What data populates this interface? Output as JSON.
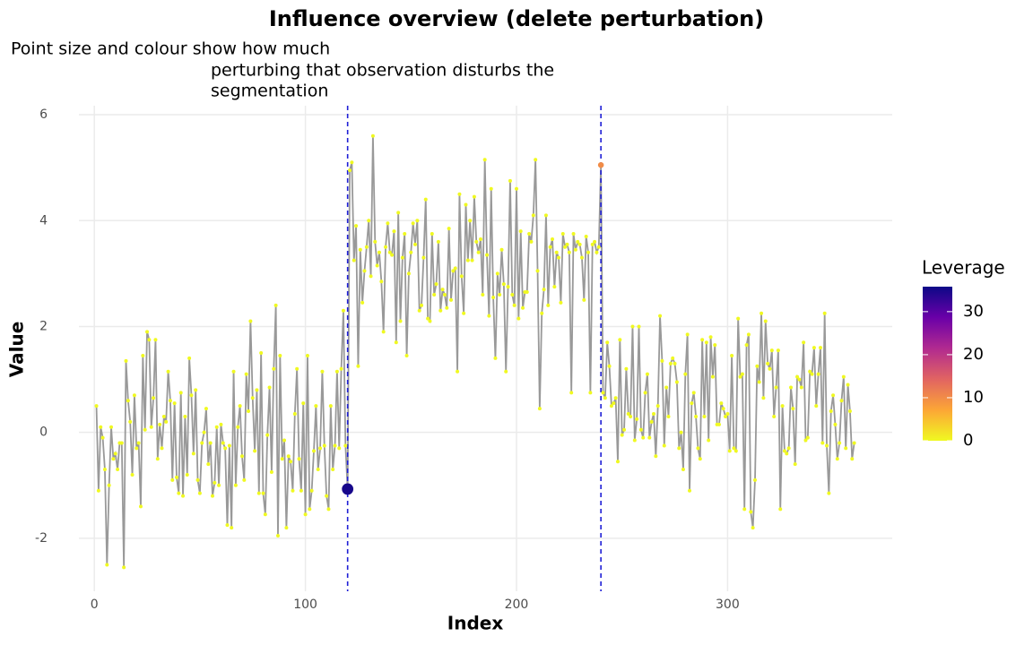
{
  "chart_data": {
    "type": "line",
    "title": "Influence overview (delete perturbation)",
    "subtitle": [
      "Point size and colour show how much",
      "perturbing that observation disturbs the",
      "segmentation"
    ],
    "xlabel": "Index",
    "ylabel": "Value",
    "x": [
      1,
      2,
      3,
      4,
      5,
      6,
      7,
      8,
      9,
      10,
      11,
      12,
      13,
      14,
      15,
      16,
      17,
      18,
      19,
      20,
      21,
      22,
      23,
      24,
      25,
      26,
      27,
      28,
      29,
      30,
      31,
      32,
      33,
      34,
      35,
      36,
      37,
      38,
      39,
      40,
      41,
      42,
      43,
      44,
      45,
      46,
      47,
      48,
      49,
      50,
      51,
      52,
      53,
      54,
      55,
      56,
      57,
      58,
      59,
      60,
      61,
      62,
      63,
      64,
      65,
      66,
      67,
      68,
      69,
      70,
      71,
      72,
      73,
      74,
      75,
      76,
      77,
      78,
      79,
      80,
      81,
      82,
      83,
      84,
      85,
      86,
      87,
      88,
      89,
      90,
      91,
      92,
      93,
      94,
      95,
      96,
      97,
      98,
      99,
      100,
      101,
      102,
      103,
      104,
      105,
      106,
      107,
      108,
      109,
      110,
      111,
      112,
      113,
      114,
      115,
      116,
      117,
      118,
      119,
      120,
      121,
      122,
      123,
      124,
      125,
      126,
      127,
      128,
      129,
      130,
      131,
      132,
      133,
      134,
      135,
      136,
      137,
      138,
      139,
      140,
      141,
      142,
      143,
      144,
      145,
      146,
      147,
      148,
      149,
      150,
      151,
      152,
      153,
      154,
      155,
      156,
      157,
      158,
      159,
      160,
      161,
      162,
      163,
      164,
      165,
      166,
      167,
      168,
      169,
      170,
      171,
      172,
      173,
      174,
      175,
      176,
      177,
      178,
      179,
      180,
      181,
      182,
      183,
      184,
      185,
      186,
      187,
      188,
      189,
      190,
      191,
      192,
      193,
      194,
      195,
      196,
      197,
      198,
      199,
      200,
      201,
      202,
      203,
      204,
      205,
      206,
      207,
      208,
      209,
      210,
      211,
      212,
      213,
      214,
      215,
      216,
      217,
      218,
      219,
      220,
      221,
      222,
      223,
      224,
      225,
      226,
      227,
      228,
      229,
      230,
      231,
      232,
      233,
      234,
      235,
      236,
      237,
      238,
      239,
      240,
      241,
      242,
      243,
      244,
      245,
      246,
      247,
      248,
      249,
      250,
      251,
      252,
      253,
      254,
      255,
      256,
      257,
      258,
      259,
      260,
      261,
      262,
      263,
      264,
      265,
      266,
      267,
      268,
      269,
      270,
      271,
      272,
      273,
      274,
      275,
      276,
      277,
      278,
      279,
      280,
      281,
      282,
      283,
      284,
      285,
      286,
      287,
      288,
      289,
      290,
      291,
      292,
      293,
      294,
      295,
      296,
      297,
      298,
      299,
      300,
      301,
      302,
      303,
      304,
      305,
      306,
      307,
      308,
      309,
      310,
      311,
      312,
      313,
      314,
      315,
      316,
      317,
      318,
      319,
      320,
      321,
      322,
      323,
      324,
      325,
      326,
      327,
      328,
      329,
      330,
      331,
      332,
      333,
      334,
      335,
      336,
      337,
      338,
      339,
      340,
      341,
      342,
      343,
      344,
      345,
      346,
      347,
      348,
      349,
      350,
      351,
      352,
      353,
      354,
      355,
      356,
      357,
      358,
      359,
      360
    ],
    "values": [
      0.5,
      -1.1,
      0.1,
      -0.1,
      -0.7,
      -2.5,
      -1.0,
      0.1,
      -0.5,
      -0.4,
      -0.7,
      -0.2,
      -0.2,
      -2.55,
      1.35,
      0.6,
      0.2,
      -0.8,
      0.7,
      -0.3,
      -0.2,
      -1.4,
      1.45,
      0.05,
      1.9,
      1.75,
      0.1,
      0.65,
      1.75,
      -0.5,
      0.15,
      -0.3,
      0.3,
      0.2,
      1.15,
      0.6,
      -0.9,
      0.55,
      -0.85,
      -1.15,
      0.75,
      -1.2,
      0.3,
      -0.8,
      1.4,
      0.7,
      -0.4,
      0.8,
      -0.9,
      -1.15,
      -0.2,
      0.0,
      0.45,
      -0.6,
      -0.2,
      -1.2,
      -0.95,
      0.1,
      -1.0,
      0.15,
      -0.2,
      -0.3,
      -1.75,
      -0.25,
      -1.8,
      1.15,
      -1.0,
      0.1,
      0.5,
      -0.45,
      -0.9,
      1.1,
      0.4,
      2.1,
      0.65,
      -0.35,
      0.8,
      -1.15,
      1.5,
      -1.15,
      -1.55,
      -0.05,
      0.85,
      -0.75,
      1.2,
      2.4,
      -1.95,
      1.45,
      -0.5,
      -0.15,
      -1.8,
      -0.45,
      -0.55,
      -1.1,
      0.35,
      1.2,
      -0.5,
      -1.1,
      0.55,
      -1.55,
      1.45,
      -1.45,
      -1.1,
      -0.35,
      0.5,
      -0.7,
      -0.3,
      1.15,
      -0.25,
      -1.2,
      -1.45,
      0.5,
      -0.7,
      -0.25,
      1.15,
      -0.3,
      1.2,
      2.3,
      -0.25,
      -1.07,
      4.95,
      5.1,
      3.25,
      3.9,
      1.25,
      3.45,
      2.45,
      3.05,
      3.5,
      4.0,
      2.95,
      5.6,
      3.6,
      3.15,
      3.4,
      2.85,
      1.9,
      3.5,
      3.95,
      3.4,
      3.35,
      3.8,
      1.7,
      4.15,
      2.1,
      3.3,
      3.75,
      1.45,
      3.0,
      3.4,
      3.95,
      3.55,
      4.0,
      2.3,
      2.4,
      3.3,
      4.4,
      2.15,
      2.1,
      3.75,
      2.6,
      2.8,
      3.6,
      2.3,
      2.7,
      2.6,
      2.35,
      3.85,
      2.5,
      3.05,
      3.1,
      1.15,
      4.5,
      2.95,
      2.25,
      4.3,
      3.25,
      4.0,
      3.25,
      4.45,
      3.6,
      3.4,
      3.65,
      2.6,
      5.15,
      3.35,
      2.2,
      4.6,
      2.55,
      1.4,
      3.0,
      2.6,
      3.45,
      2.8,
      1.15,
      2.75,
      4.75,
      2.6,
      2.4,
      4.6,
      2.15,
      3.8,
      2.35,
      2.65,
      2.65,
      3.75,
      3.6,
      4.1,
      5.15,
      3.05,
      0.45,
      2.25,
      2.7,
      4.1,
      2.4,
      3.5,
      3.65,
      2.75,
      3.4,
      3.3,
      2.45,
      3.75,
      3.5,
      3.55,
      3.4,
      0.75,
      3.75,
      3.45,
      3.6,
      3.55,
      3.3,
      2.5,
      3.7,
      3.4,
      0.75,
      3.55,
      3.6,
      3.4,
      3.5,
      5.05,
      0.75,
      0.65,
      1.7,
      1.25,
      0.5,
      0.55,
      0.65,
      -0.55,
      1.75,
      -0.05,
      0.05,
      1.2,
      0.35,
      0.3,
      2.0,
      -0.15,
      0.25,
      2.0,
      0.05,
      -0.1,
      0.75,
      1.1,
      -0.1,
      0.2,
      0.35,
      -0.45,
      0.5,
      2.2,
      1.35,
      -0.25,
      0.85,
      0.3,
      1.3,
      1.4,
      1.3,
      0.95,
      -0.3,
      0.0,
      -0.7,
      1.1,
      1.85,
      -1.1,
      0.55,
      0.75,
      0.3,
      -0.3,
      -0.5,
      1.75,
      0.3,
      1.7,
      -0.15,
      1.8,
      1.05,
      1.65,
      0.15,
      0.15,
      0.55,
      0.45,
      0.3,
      0.35,
      -0.35,
      1.45,
      -0.3,
      -0.35,
      2.15,
      1.05,
      1.1,
      -1.45,
      1.65,
      1.85,
      -1.5,
      -1.8,
      -0.9,
      1.25,
      0.95,
      2.25,
      0.65,
      2.1,
      1.3,
      1.2,
      1.55,
      0.3,
      0.85,
      1.55,
      -1.45,
      0.5,
      -0.35,
      -0.4,
      -0.3,
      0.85,
      0.45,
      -0.6,
      1.05,
      1.0,
      0.85,
      1.7,
      -0.15,
      -0.1,
      1.15,
      1.1,
      1.6,
      0.5,
      1.1,
      1.6,
      -0.2,
      2.25,
      -0.25,
      -1.15,
      0.4,
      0.7,
      0.15,
      -0.5,
      -0.2,
      0.6,
      1.05,
      -0.3,
      0.9,
      0.4,
      -0.5,
      -0.2
    ],
    "leverage": [
      0,
      0,
      0,
      0,
      0,
      0,
      0,
      0,
      0,
      0,
      0,
      0,
      0,
      0,
      0,
      0,
      0,
      0,
      0,
      0,
      0,
      0,
      0,
      0,
      0,
      0,
      0,
      0,
      0,
      0,
      0,
      0,
      0,
      0,
      0,
      0,
      0,
      0,
      0,
      0,
      0,
      0,
      0,
      0,
      0,
      0,
      0,
      0,
      0,
      0,
      0,
      0,
      0,
      0,
      0,
      0,
      0,
      0,
      0,
      0,
      0,
      0,
      0,
      0,
      0,
      0,
      0,
      0,
      0,
      0,
      0,
      0,
      0,
      0,
      0,
      0,
      0,
      0,
      0,
      0,
      0,
      0,
      0,
      0,
      0,
      0,
      0,
      0,
      0,
      0,
      0,
      0,
      0,
      0,
      0,
      0,
      0,
      0,
      0,
      0,
      0,
      0,
      0,
      0,
      0,
      0,
      0,
      0,
      0,
      0,
      0,
      0,
      0,
      0,
      0,
      0,
      0,
      0,
      0,
      35,
      0,
      0,
      0,
      0,
      0,
      0,
      0,
      0,
      0,
      0,
      0,
      0,
      0,
      0,
      0,
      0,
      0,
      0,
      0,
      0,
      0,
      0,
      0,
      0,
      0,
      0,
      0,
      0,
      0,
      0,
      0,
      0,
      0,
      0,
      0,
      0,
      0,
      0,
      0,
      0,
      0,
      0,
      0,
      0,
      0,
      0,
      0,
      0,
      0,
      0,
      0,
      0,
      0,
      0,
      0,
      0,
      0,
      0,
      0,
      0,
      0,
      0,
      0,
      0,
      0,
      0,
      0,
      0,
      0,
      0,
      0,
      0,
      0,
      0,
      0,
      0,
      0,
      0,
      0,
      0,
      0,
      0,
      0,
      0,
      0,
      0,
      0,
      0,
      0,
      0,
      0,
      0,
      0,
      0,
      0,
      0,
      0,
      0,
      0,
      0,
      0,
      0,
      0,
      0,
      0,
      0,
      0,
      0,
      0,
      0,
      0,
      0,
      0,
      0,
      0,
      0,
      0,
      0,
      0,
      10,
      0,
      0,
      0,
      0,
      0,
      0,
      0,
      0,
      0,
      0,
      0,
      0,
      0,
      0,
      0,
      0,
      0,
      0,
      0,
      0,
      0,
      0,
      0,
      0,
      0,
      0,
      0,
      0,
      0,
      0,
      0,
      0,
      0,
      0,
      0,
      0,
      0,
      0,
      0,
      0,
      0,
      0,
      0,
      0,
      0,
      0,
      0,
      0,
      0,
      0,
      0,
      0,
      0,
      0,
      0,
      0,
      0,
      0,
      0,
      0,
      0,
      0,
      0,
      0,
      0,
      0,
      0,
      0,
      0,
      0,
      0,
      0,
      0,
      0,
      0,
      0,
      0,
      0,
      0,
      0,
      0,
      0,
      0,
      0,
      0,
      0,
      0,
      0,
      0,
      0,
      0,
      0,
      0,
      0,
      0,
      0,
      0,
      0,
      0,
      0,
      0,
      0,
      0,
      0,
      0,
      0,
      0,
      0,
      0,
      0,
      0,
      0,
      0,
      0,
      0,
      0,
      0,
      0,
      0,
      0
    ],
    "line_color": "#999999",
    "vlines": [
      120,
      240
    ],
    "vline_color": "#1f1fd6",
    "xlim": [
      -7.3,
      378
    ],
    "xticks": [
      0,
      100,
      200,
      300
    ],
    "ylim": [
      -3.0,
      6.17
    ],
    "yticks": [
      -2,
      0,
      2,
      4,
      6
    ],
    "grid": true,
    "legend_title": "Leverage",
    "legend_position": "right",
    "colorlim": [
      0,
      35.8
    ],
    "colorticks": [
      0,
      10,
      20,
      30
    ],
    "colormap": [
      "#f0f921",
      "#fca636",
      "#e16462",
      "#b12a90",
      "#6a00a8",
      "#0d0887"
    ]
  }
}
